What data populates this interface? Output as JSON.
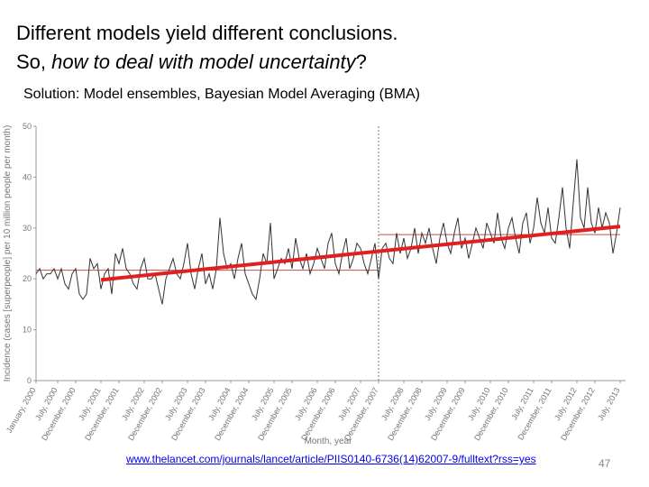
{
  "slide": {
    "title_line1": "Different models yield different conclusions.",
    "title_line2_start": "So, ",
    "title_line2_italic": "how to deal with model uncertainty",
    "title_line2_end": "?",
    "subtitle": "Solution:  Model ensembles, Bayesian Model Averaging (BMA)",
    "source_link": "www.thelancet.com/journals/lancet/article/PIIS0140-6736(14)62007-9/fulltext?rss=yes",
    "page_number": 47
  },
  "chart_data": {
    "type": "line",
    "y_label": "Incidence (cases [superpeople] per 10 million people per month)",
    "x_label": "Month, year",
    "ylim": [
      0,
      50
    ],
    "yticks": [
      0,
      10,
      20,
      30,
      40,
      50
    ],
    "categories": [
      "January, 2000",
      null,
      null,
      null,
      null,
      null,
      "July, 2000",
      null,
      null,
      null,
      null,
      "December, 2000",
      null,
      null,
      null,
      null,
      null,
      null,
      "July, 2001",
      null,
      null,
      null,
      null,
      "December, 2001",
      null,
      null,
      null,
      null,
      null,
      null,
      "July, 2002",
      null,
      null,
      null,
      null,
      "December, 2002",
      null,
      null,
      null,
      null,
      null,
      null,
      "July, 2003",
      null,
      null,
      null,
      null,
      "December, 2003",
      null,
      null,
      null,
      null,
      null,
      null,
      "July, 2004",
      null,
      null,
      null,
      null,
      "December, 2004",
      null,
      null,
      null,
      null,
      null,
      null,
      "July, 2005",
      null,
      null,
      null,
      null,
      "December, 2005",
      null,
      null,
      null,
      null,
      null,
      null,
      "July, 2006",
      null,
      null,
      null,
      null,
      "December, 2006",
      null,
      null,
      null,
      null,
      null,
      null,
      "July, 2007",
      null,
      null,
      null,
      null,
      "December, 2007",
      null,
      null,
      null,
      null,
      null,
      null,
      "July, 2008",
      null,
      null,
      null,
      null,
      "December, 2008",
      null,
      null,
      null,
      null,
      null,
      null,
      "July, 2009",
      null,
      null,
      null,
      null,
      "December, 2009",
      null,
      null,
      null,
      null,
      null,
      null,
      "July, 2010",
      null,
      null,
      null,
      null,
      "December, 2010",
      null,
      null,
      null,
      null,
      null,
      null,
      "July, 2011",
      null,
      null,
      null,
      null,
      "December, 2011",
      null,
      null,
      null,
      null,
      null,
      null,
      "July, 2012",
      null,
      null,
      null,
      null,
      "December, 2012",
      null,
      null,
      null,
      null,
      null,
      null,
      "July, 2013"
    ],
    "series": [
      {
        "color": "#333333",
        "values": [
          21,
          22,
          20,
          21,
          21,
          22,
          20,
          22,
          19,
          18,
          21,
          22,
          17,
          16,
          17,
          24,
          22,
          23,
          18,
          21,
          22,
          17,
          25,
          23,
          26,
          22,
          21,
          19,
          18,
          22,
          24,
          20,
          20,
          21,
          18,
          15,
          20,
          22,
          24,
          21,
          20,
          23,
          27,
          21,
          18,
          22,
          25,
          19,
          21,
          18,
          22,
          32,
          25,
          22,
          23,
          20,
          24,
          27,
          21,
          19,
          17,
          16,
          20,
          25,
          23,
          31,
          20,
          22,
          24,
          23,
          26,
          22,
          28,
          24,
          22,
          25,
          21,
          23,
          26,
          24,
          22,
          27,
          29,
          23,
          21,
          25,
          28,
          22,
          24,
          27,
          26,
          23,
          21,
          24,
          27,
          20,
          26,
          27,
          24,
          23,
          29,
          25,
          28,
          24,
          26,
          30,
          25,
          29,
          27,
          30,
          26,
          23,
          28,
          31,
          27,
          25,
          29,
          32,
          26,
          28,
          24,
          27,
          30,
          28,
          26,
          31,
          29,
          27,
          33,
          28,
          26,
          30,
          32,
          28,
          25,
          31,
          33,
          27,
          30,
          36,
          31,
          29,
          34,
          28,
          27,
          32,
          38,
          30,
          26,
          35,
          43.5,
          32,
          30,
          38,
          31,
          29,
          34,
          30,
          33,
          31,
          25,
          29,
          34
        ]
      }
    ],
    "trend": {
      "start": "July, 2001",
      "end": "July, 2013",
      "start_value": 19.8,
      "end_value": 30.3,
      "color": "#e02020"
    },
    "period_means": [
      {
        "start": "January, 2000",
        "end": "December, 2007",
        "value": 21.7
      },
      {
        "start": "December, 2007",
        "end": "July, 2013",
        "value": 28.7
      }
    ],
    "mean_color": "#c0504d",
    "divider": "December, 2007"
  }
}
